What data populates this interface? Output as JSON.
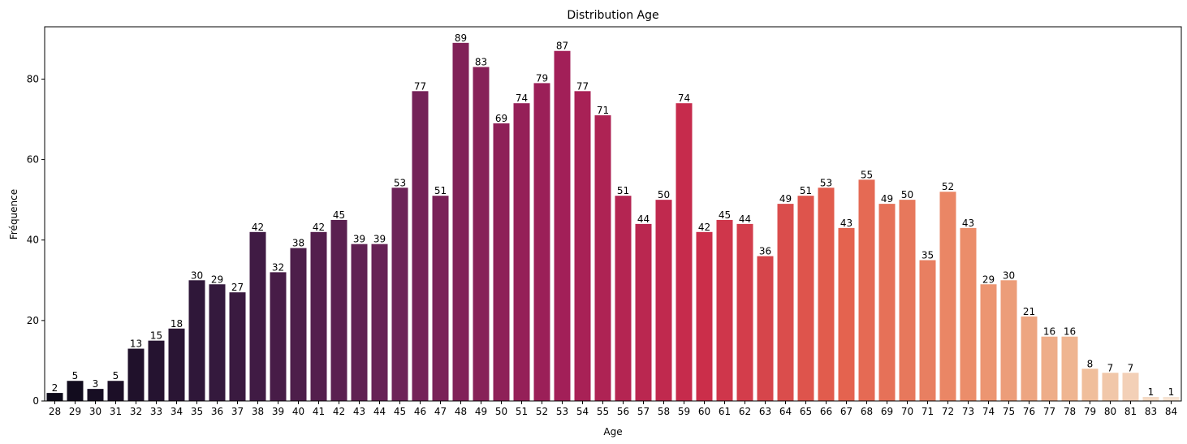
{
  "chart_data": {
    "type": "bar",
    "title": "Distribution Age",
    "xlabel": "Age",
    "ylabel": "Fréquence",
    "ylim": [
      0,
      93
    ],
    "yticks": [
      0,
      20,
      40,
      60,
      80
    ],
    "grid": false,
    "legend": "none",
    "palette": "rocket",
    "categories": [
      "28",
      "29",
      "30",
      "31",
      "32",
      "33",
      "34",
      "35",
      "36",
      "37",
      "38",
      "39",
      "40",
      "41",
      "42",
      "43",
      "44",
      "45",
      "46",
      "47",
      "48",
      "49",
      "50",
      "51",
      "52",
      "53",
      "54",
      "55",
      "56",
      "57",
      "58",
      "59",
      "60",
      "61",
      "62",
      "63",
      "64",
      "65",
      "66",
      "67",
      "68",
      "69",
      "70",
      "71",
      "72",
      "73",
      "74",
      "75",
      "76",
      "77",
      "78",
      "79",
      "80",
      "81",
      "83",
      "84"
    ],
    "values": [
      2,
      5,
      3,
      5,
      13,
      15,
      18,
      30,
      29,
      27,
      42,
      32,
      38,
      42,
      45,
      39,
      39,
      53,
      77,
      51,
      89,
      83,
      69,
      74,
      79,
      87,
      77,
      71,
      51,
      44,
      50,
      74,
      42,
      45,
      44,
      36,
      49,
      51,
      53,
      43,
      55,
      49,
      50,
      35,
      52,
      43,
      29,
      30,
      21,
      16,
      16,
      8,
      7,
      7,
      1,
      1
    ]
  }
}
